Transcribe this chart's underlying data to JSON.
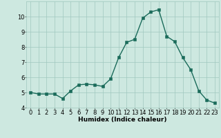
{
  "x": [
    0,
    1,
    2,
    3,
    4,
    5,
    6,
    7,
    8,
    9,
    10,
    11,
    12,
    13,
    14,
    15,
    16,
    17,
    18,
    19,
    20,
    21,
    22,
    23
  ],
  "y": [
    5.0,
    4.9,
    4.9,
    4.9,
    4.6,
    5.1,
    5.5,
    5.55,
    5.5,
    5.4,
    5.9,
    7.3,
    8.3,
    8.5,
    9.9,
    10.3,
    10.45,
    8.7,
    8.35,
    7.3,
    6.5,
    5.1,
    4.5,
    4.3
  ],
  "line_color": "#1a6b5a",
  "marker_color": "#1a6b5a",
  "bg_color": "#cde8e0",
  "grid_color": "#a0c8be",
  "xlabel": "Humidex (Indice chaleur)",
  "ylim": [
    4,
    11
  ],
  "xlim": [
    -0.5,
    23.5
  ],
  "yticks": [
    4,
    5,
    6,
    7,
    8,
    9,
    10
  ],
  "xticks": [
    0,
    1,
    2,
    3,
    4,
    5,
    6,
    7,
    8,
    9,
    10,
    11,
    12,
    13,
    14,
    15,
    16,
    17,
    18,
    19,
    20,
    21,
    22,
    23
  ],
  "xlabel_fontsize": 6.5,
  "tick_fontsize": 6,
  "linewidth": 1.0,
  "markersize": 2.2
}
